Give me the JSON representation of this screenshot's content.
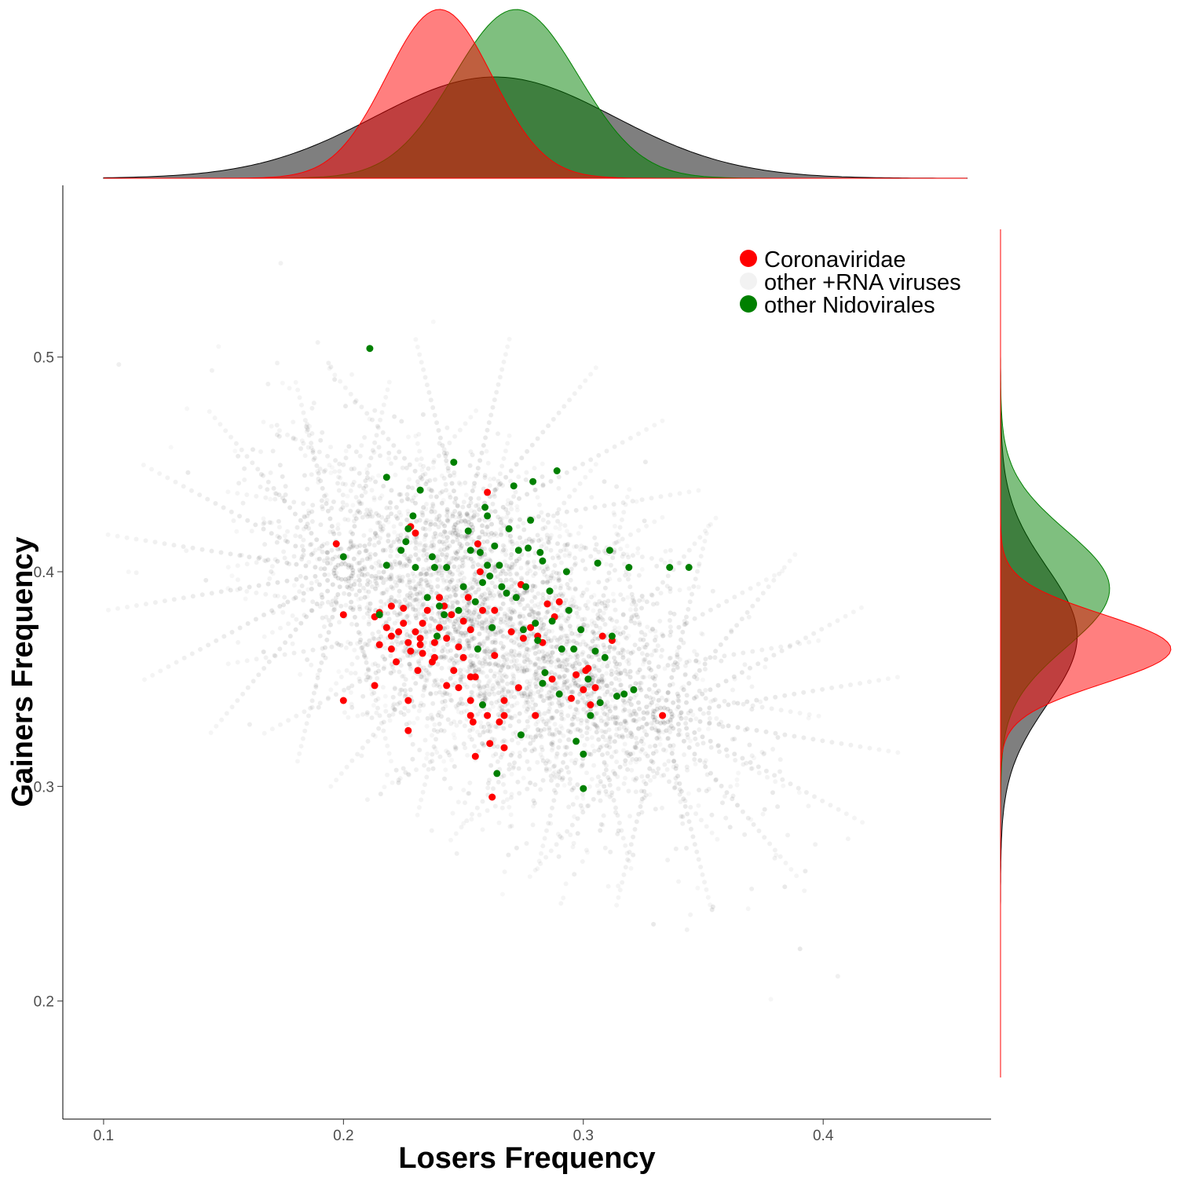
{
  "chart_data": {
    "type": "scatter",
    "xlabel": "Losers Frequency",
    "ylabel": "Gainers Frequency",
    "xlim": [
      0.083,
      0.47
    ],
    "ylim": [
      0.145,
      0.58
    ],
    "xticks": [
      {
        "value": 0.1,
        "label": "0.1"
      },
      {
        "value": 0.2,
        "label": "0.2"
      },
      {
        "value": 0.3,
        "label": "0.3"
      },
      {
        "value": 0.4,
        "label": "0.4"
      }
    ],
    "yticks": [
      {
        "value": 0.2,
        "label": "0.2"
      },
      {
        "value": 0.3,
        "label": "0.3"
      },
      {
        "value": 0.4,
        "label": "0.4"
      },
      {
        "value": 0.5,
        "label": "0.5"
      }
    ],
    "grid": false,
    "legend_position": "top-right",
    "colors": {
      "coronaviridae": "#ff0000",
      "other_rna": "#f2f2f2",
      "nidovirales": "#008000",
      "background_points": "#000000"
    },
    "series": [
      {
        "name": "Coronaviridae",
        "color": "#ff0000",
        "points": [
          [
            0.197,
            0.413
          ],
          [
            0.2,
            0.38
          ],
          [
            0.2,
            0.34
          ],
          [
            0.213,
            0.379
          ],
          [
            0.213,
            0.347
          ],
          [
            0.215,
            0.381
          ],
          [
            0.215,
            0.366
          ],
          [
            0.218,
            0.374
          ],
          [
            0.22,
            0.384
          ],
          [
            0.22,
            0.37
          ],
          [
            0.22,
            0.364
          ],
          [
            0.222,
            0.358
          ],
          [
            0.223,
            0.372
          ],
          [
            0.225,
            0.383
          ],
          [
            0.225,
            0.376
          ],
          [
            0.227,
            0.367
          ],
          [
            0.227,
            0.34
          ],
          [
            0.227,
            0.326
          ],
          [
            0.228,
            0.421
          ],
          [
            0.228,
            0.363
          ],
          [
            0.23,
            0.418
          ],
          [
            0.23,
            0.372
          ],
          [
            0.231,
            0.354
          ],
          [
            0.232,
            0.369
          ],
          [
            0.232,
            0.366
          ],
          [
            0.233,
            0.376
          ],
          [
            0.233,
            0.362
          ],
          [
            0.235,
            0.382
          ],
          [
            0.237,
            0.358
          ],
          [
            0.238,
            0.367
          ],
          [
            0.238,
            0.36
          ],
          [
            0.24,
            0.388
          ],
          [
            0.24,
            0.374
          ],
          [
            0.242,
            0.384
          ],
          [
            0.243,
            0.369
          ],
          [
            0.243,
            0.347
          ],
          [
            0.245,
            0.38
          ],
          [
            0.246,
            0.354
          ],
          [
            0.248,
            0.365
          ],
          [
            0.248,
            0.346
          ],
          [
            0.25,
            0.377
          ],
          [
            0.25,
            0.36
          ],
          [
            0.252,
            0.388
          ],
          [
            0.253,
            0.373
          ],
          [
            0.253,
            0.351
          ],
          [
            0.253,
            0.34
          ],
          [
            0.253,
            0.333
          ],
          [
            0.254,
            0.33
          ],
          [
            0.255,
            0.314
          ],
          [
            0.255,
            0.351
          ],
          [
            0.256,
            0.413
          ],
          [
            0.257,
            0.4
          ],
          [
            0.258,
            0.382
          ],
          [
            0.26,
            0.437
          ],
          [
            0.26,
            0.333
          ],
          [
            0.261,
            0.32
          ],
          [
            0.262,
            0.295
          ],
          [
            0.263,
            0.382
          ],
          [
            0.263,
            0.361
          ],
          [
            0.265,
            0.33
          ],
          [
            0.267,
            0.333
          ],
          [
            0.267,
            0.34
          ],
          [
            0.267,
            0.318
          ],
          [
            0.27,
            0.372
          ],
          [
            0.273,
            0.346
          ],
          [
            0.274,
            0.394
          ],
          [
            0.275,
            0.369
          ],
          [
            0.278,
            0.374
          ],
          [
            0.28,
            0.333
          ],
          [
            0.281,
            0.37
          ],
          [
            0.283,
            0.367
          ],
          [
            0.285,
            0.385
          ],
          [
            0.287,
            0.35
          ],
          [
            0.288,
            0.379
          ],
          [
            0.29,
            0.386
          ],
          [
            0.295,
            0.341
          ],
          [
            0.297,
            0.352
          ],
          [
            0.3,
            0.345
          ],
          [
            0.301,
            0.354
          ],
          [
            0.302,
            0.355
          ],
          [
            0.303,
            0.338
          ],
          [
            0.305,
            0.346
          ],
          [
            0.308,
            0.37
          ],
          [
            0.312,
            0.368
          ],
          [
            0.333,
            0.333
          ]
        ]
      },
      {
        "name": "other +RNA viruses",
        "color": "#f2f2f2",
        "points": []
      },
      {
        "name": "other Nidovirales",
        "color": "#008000",
        "points": [
          [
            0.2,
            0.407
          ],
          [
            0.211,
            0.504
          ],
          [
            0.215,
            0.38
          ],
          [
            0.218,
            0.403
          ],
          [
            0.218,
            0.444
          ],
          [
            0.224,
            0.41
          ],
          [
            0.226,
            0.414
          ],
          [
            0.227,
            0.42
          ],
          [
            0.229,
            0.426
          ],
          [
            0.23,
            0.402
          ],
          [
            0.232,
            0.438
          ],
          [
            0.235,
            0.388
          ],
          [
            0.237,
            0.407
          ],
          [
            0.238,
            0.402
          ],
          [
            0.239,
            0.37
          ],
          [
            0.24,
            0.384
          ],
          [
            0.242,
            0.38
          ],
          [
            0.243,
            0.402
          ],
          [
            0.246,
            0.451
          ],
          [
            0.248,
            0.382
          ],
          [
            0.25,
            0.393
          ],
          [
            0.252,
            0.419
          ],
          [
            0.253,
            0.41
          ],
          [
            0.255,
            0.386
          ],
          [
            0.256,
            0.364
          ],
          [
            0.257,
            0.409
          ],
          [
            0.258,
            0.395
          ],
          [
            0.258,
            0.338
          ],
          [
            0.259,
            0.43
          ],
          [
            0.26,
            0.426
          ],
          [
            0.26,
            0.403
          ],
          [
            0.261,
            0.398
          ],
          [
            0.262,
            0.374
          ],
          [
            0.263,
            0.412
          ],
          [
            0.264,
            0.306
          ],
          [
            0.265,
            0.403
          ],
          [
            0.266,
            0.393
          ],
          [
            0.268,
            0.39
          ],
          [
            0.269,
            0.42
          ],
          [
            0.271,
            0.44
          ],
          [
            0.272,
            0.388
          ],
          [
            0.273,
            0.41
          ],
          [
            0.274,
            0.324
          ],
          [
            0.275,
            0.373
          ],
          [
            0.276,
            0.393
          ],
          [
            0.277,
            0.411
          ],
          [
            0.278,
            0.424
          ],
          [
            0.279,
            0.442
          ],
          [
            0.28,
            0.376
          ],
          [
            0.281,
            0.368
          ],
          [
            0.282,
            0.409
          ],
          [
            0.283,
            0.348
          ],
          [
            0.283,
            0.405
          ],
          [
            0.284,
            0.353
          ],
          [
            0.286,
            0.391
          ],
          [
            0.287,
            0.377
          ],
          [
            0.289,
            0.447
          ],
          [
            0.29,
            0.343
          ],
          [
            0.291,
            0.364
          ],
          [
            0.293,
            0.4
          ],
          [
            0.294,
            0.382
          ],
          [
            0.296,
            0.364
          ],
          [
            0.297,
            0.321
          ],
          [
            0.299,
            0.373
          ],
          [
            0.3,
            0.299
          ],
          [
            0.3,
            0.315
          ],
          [
            0.302,
            0.35
          ],
          [
            0.303,
            0.333
          ],
          [
            0.305,
            0.363
          ],
          [
            0.306,
            0.404
          ],
          [
            0.307,
            0.339
          ],
          [
            0.309,
            0.36
          ],
          [
            0.311,
            0.41
          ],
          [
            0.312,
            0.37
          ],
          [
            0.314,
            0.342
          ],
          [
            0.317,
            0.343
          ],
          [
            0.319,
            0.402
          ],
          [
            0.321,
            0.345
          ],
          [
            0.336,
            0.402
          ],
          [
            0.344,
            0.402
          ]
        ]
      }
    ]
  },
  "legend": {
    "items": [
      {
        "label": "Coronaviridae",
        "color": "#ff0000"
      },
      {
        "label": "other +RNA viruses",
        "color": "#f2f2f2"
      },
      {
        "label": "other Nidovirales",
        "color": "#008000"
      }
    ]
  },
  "marginal_top": {
    "x_range": [
      0.1,
      0.46
    ],
    "densities": [
      {
        "name": "other +RNA viruses",
        "fill": "#000000",
        "opacity": 0.5,
        "mean": 0.263,
        "sd": 0.05
      },
      {
        "name": "other Nidovirales",
        "fill": "#008000",
        "opacity": 0.5,
        "mean": 0.272,
        "sd": 0.026
      },
      {
        "name": "Coronaviridae",
        "fill": "#ff0000",
        "opacity": 0.5,
        "mean": 0.24,
        "sd": 0.022
      }
    ]
  },
  "marginal_right": {
    "y_range": [
      0.18,
      0.54
    ],
    "densities": [
      {
        "name": "other +RNA viruses",
        "fill": "#000000",
        "opacity": 0.5,
        "mean": 0.37,
        "sd": 0.032
      },
      {
        "name": "other Nidovirales",
        "fill": "#008000",
        "opacity": 0.5,
        "mean": 0.392,
        "sd": 0.027
      },
      {
        "name": "Coronaviridae",
        "fill": "#ff0000",
        "opacity": 0.5,
        "mean": 0.364,
        "sd": 0.016
      }
    ]
  }
}
